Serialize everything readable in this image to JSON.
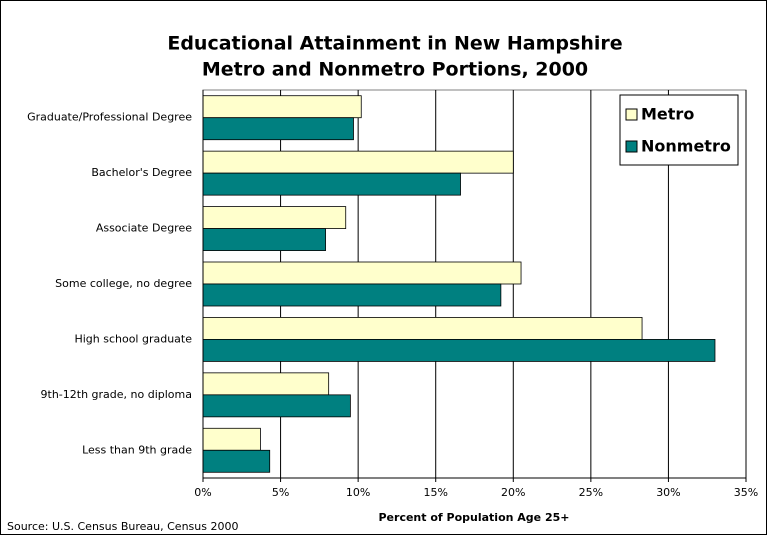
{
  "chart_data": {
    "type": "hbar",
    "title": "Educational Attainment in New Hampshire",
    "subtitle": "Metro and Nonmetro Portions, 2000",
    "categories": [
      "Graduate/Professional Degree",
      "Bachelor's Degree",
      "Associate Degree",
      "Some college, no degree",
      "High school graduate",
      "9th-12th grade, no diploma",
      "Less than 9th grade"
    ],
    "series": [
      {
        "name": "Metro",
        "color": "#ffffcc",
        "values": [
          10.2,
          20.0,
          9.2,
          20.5,
          28.3,
          8.1,
          3.7
        ]
      },
      {
        "name": "Nonmetro",
        "color": "#008080",
        "values": [
          9.7,
          16.6,
          7.9,
          19.2,
          33.0,
          9.5,
          4.3
        ]
      }
    ],
    "xlim": [
      0,
      35
    ],
    "xticks": [
      {
        "value": 0,
        "label": "0%"
      },
      {
        "value": 5,
        "label": "5%"
      },
      {
        "value": 10,
        "label": "10%"
      },
      {
        "value": 15,
        "label": "15%"
      },
      {
        "value": 20,
        "label": "20%"
      },
      {
        "value": 25,
        "label": "25%"
      },
      {
        "value": 30,
        "label": "30%"
      },
      {
        "value": 35,
        "label": "35%"
      }
    ],
    "xlabel": "Percent of Population Age 25+",
    "source": "Source: U.S. Census Bureau, Census 2000",
    "grid": true,
    "legend": "top-right"
  }
}
